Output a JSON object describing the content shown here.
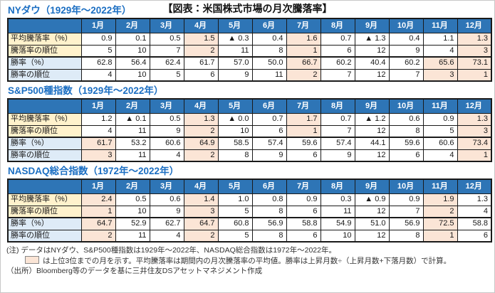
{
  "page_title": "【図表：米国株式市場の月次騰落率】",
  "months": [
    "1月",
    "2月",
    "3月",
    "4月",
    "5月",
    "6月",
    "7月",
    "8月",
    "9月",
    "10月",
    "11月",
    "12月"
  ],
  "row_labels": {
    "avg": "平均騰落率（%）",
    "avg_rank": "騰落率の順位",
    "win": "勝率（%）",
    "win_rank": "勝率の順位"
  },
  "colors": {
    "header_blue": "#2e75b6",
    "section_title_blue": "#1b6ec2",
    "highlight_pink": "#fbe5d6",
    "label_cream": "#fff2cc",
    "label_light_blue": "#deebf7"
  },
  "chart_data": [
    {
      "type": "table",
      "title": "NYダウ（1929年～2022年）",
      "columns": [
        "1月",
        "2月",
        "3月",
        "4月",
        "5月",
        "6月",
        "7月",
        "8月",
        "9月",
        "10月",
        "11月",
        "12月"
      ],
      "avg_change_pct": [
        "0.9",
        "0.1",
        "0.5",
        "1.5",
        "▲ 0.3",
        "0.4",
        "1.6",
        "0.7",
        "▲ 1.3",
        "0.4",
        "1.1",
        "1.3"
      ],
      "avg_change_rank": [
        "5",
        "10",
        "7",
        "2",
        "11",
        "8",
        "1",
        "6",
        "12",
        "9",
        "4",
        "3"
      ],
      "win_rate_pct": [
        "62.8",
        "56.4",
        "62.4",
        "61.7",
        "57.0",
        "50.0",
        "66.7",
        "60.2",
        "40.4",
        "60.2",
        "65.6",
        "73.1"
      ],
      "win_rate_rank": [
        "4",
        "10",
        "5",
        "6",
        "9",
        "11",
        "2",
        "7",
        "12",
        "7",
        "3",
        "1"
      ],
      "rate_top3_month_indices": [
        3,
        6,
        11
      ],
      "win_top3_month_indices": [
        6,
        10,
        11
      ]
    },
    {
      "type": "table",
      "title": "S&P500種指数（1929年～2022年）",
      "columns": [
        "1月",
        "2月",
        "3月",
        "4月",
        "5月",
        "6月",
        "7月",
        "8月",
        "9月",
        "10月",
        "11月",
        "12月"
      ],
      "avg_change_pct": [
        "1.2",
        "▲ 0.1",
        "0.5",
        "1.3",
        "▲ 0.0",
        "0.7",
        "1.7",
        "0.7",
        "▲ 1.2",
        "0.6",
        "0.9",
        "1.3"
      ],
      "avg_change_rank": [
        "4",
        "11",
        "9",
        "2",
        "10",
        "6",
        "1",
        "7",
        "12",
        "8",
        "5",
        "3"
      ],
      "win_rate_pct": [
        "61.7",
        "53.2",
        "60.6",
        "64.9",
        "58.5",
        "57.4",
        "59.6",
        "57.4",
        "44.1",
        "59.6",
        "60.6",
        "73.4"
      ],
      "win_rate_rank": [
        "3",
        "11",
        "4",
        "2",
        "8",
        "9",
        "6",
        "9",
        "12",
        "6",
        "4",
        "1"
      ],
      "rate_top3_month_indices": [
        3,
        6,
        11
      ],
      "win_top3_month_indices": [
        0,
        3,
        11
      ]
    },
    {
      "type": "table",
      "title": "NASDAQ総合指数（1972年～2022年）",
      "columns": [
        "1月",
        "2月",
        "3月",
        "4月",
        "5月",
        "6月",
        "7月",
        "8月",
        "9月",
        "10月",
        "11月",
        "12月"
      ],
      "avg_change_pct": [
        "2.4",
        "0.5",
        "0.6",
        "1.4",
        "1.0",
        "0.8",
        "0.9",
        "0.3",
        "▲ 0.9",
        "0.9",
        "1.9",
        "1.3"
      ],
      "avg_change_rank": [
        "1",
        "10",
        "9",
        "3",
        "5",
        "8",
        "6",
        "11",
        "12",
        "7",
        "2",
        "4"
      ],
      "win_rate_pct": [
        "64.7",
        "52.9",
        "62.7",
        "64.7",
        "60.8",
        "56.9",
        "58.8",
        "54.9",
        "51.0",
        "56.9",
        "72.5",
        "58.8"
      ],
      "win_rate_rank": [
        "2",
        "11",
        "4",
        "2",
        "5",
        "8",
        "6",
        "10",
        "12",
        "8",
        "1",
        "6"
      ],
      "rate_top3_month_indices": [
        0,
        3,
        10
      ],
      "win_top3_month_indices": [
        0,
        3,
        10
      ]
    }
  ],
  "notes": {
    "note1": "(注) データはNYダウ、S&P500種指数は1929年～2022年、NASDAQ総合指数は1972年～2022年。",
    "note2": "は上位3位までの月を示す。平均騰落率は期間内の月次騰落率の平均値。勝率は上昇月数÷（上昇月数+下落月数）で計算。",
    "source": "（出所）Bloomberg等のデータを基に三井住友DSアセットマネジメント作成"
  }
}
